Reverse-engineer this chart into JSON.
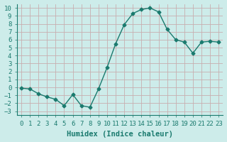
{
  "x": [
    0,
    1,
    2,
    3,
    4,
    5,
    6,
    7,
    8,
    9,
    10,
    11,
    12,
    13,
    14,
    15,
    16,
    17,
    18,
    19,
    20,
    21,
    22,
    23
  ],
  "y": [
    -0.1,
    -0.2,
    -0.8,
    -1.2,
    -1.5,
    -2.3,
    -0.9,
    -2.3,
    -2.5,
    -0.2,
    2.5,
    5.5,
    7.9,
    9.3,
    9.8,
    10.0,
    9.5,
    7.3,
    6.0,
    5.7,
    4.3,
    5.7,
    5.8,
    5.7
  ],
  "line_color": "#1a7a6e",
  "marker": "D",
  "marker_size": 2.5,
  "bg_color": "#cdecea",
  "grid_color": "#c8aeb0",
  "xlabel": "Humidex (Indice chaleur)",
  "xlim": [
    -0.5,
    23.5
  ],
  "ylim": [
    -3.5,
    10.5
  ],
  "yticks": [
    -3,
    -2,
    -1,
    0,
    1,
    2,
    3,
    4,
    5,
    6,
    7,
    8,
    9,
    10
  ],
  "xticks": [
    0,
    1,
    2,
    3,
    4,
    5,
    6,
    7,
    8,
    9,
    10,
    11,
    12,
    13,
    14,
    15,
    16,
    17,
    18,
    19,
    20,
    21,
    22,
    23
  ],
  "tick_fontsize": 6.5,
  "label_fontsize": 7.5
}
